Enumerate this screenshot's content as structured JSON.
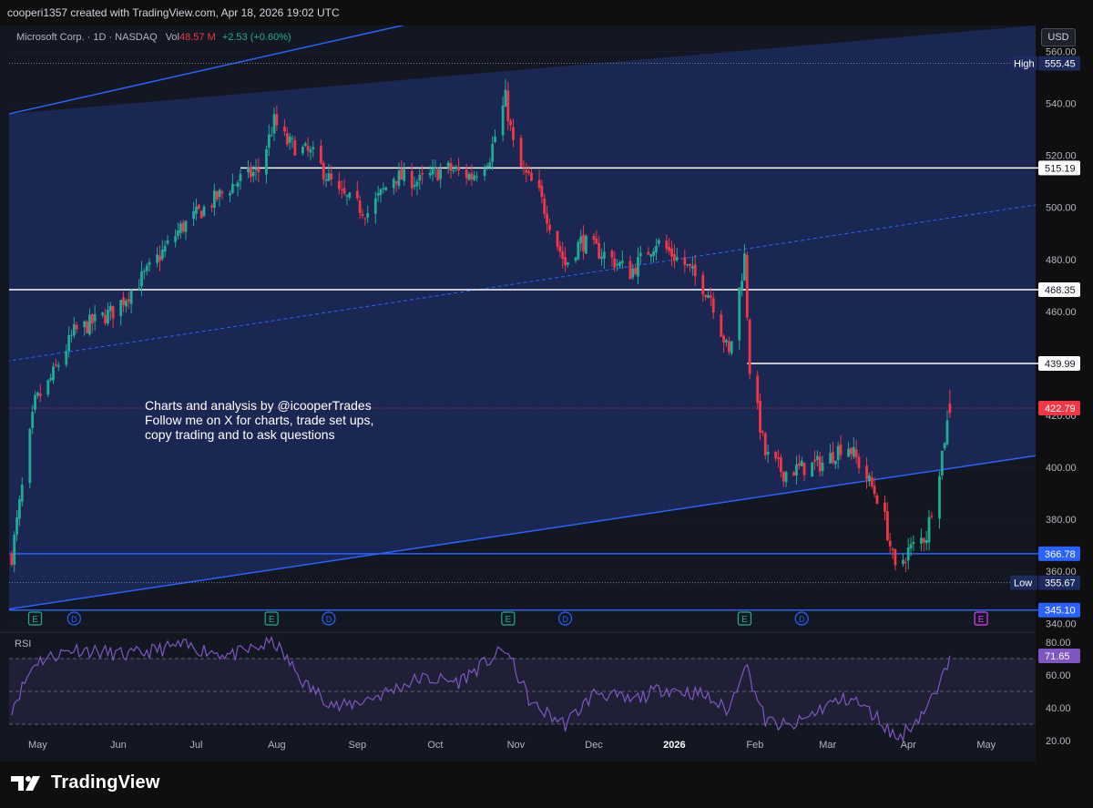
{
  "header": {
    "credit": "cooperi1357 created with TradingView.com, Apr 18, 2026 19:02 UTC"
  },
  "legend": {
    "symbol": "Microsoft Corp. · 1D · NASDAQ",
    "vol_label": "Vol",
    "vol_value": "48.57 M",
    "change": "+2.53 (+0.60%)"
  },
  "currency": "USD",
  "annotation": {
    "line1": "Charts and analysis by @icooperTrades",
    "line2": "Follow me on X for charts, trade set ups,",
    "line3": "copy trading and to ask questions"
  },
  "rsi_label": "RSI",
  "footer": {
    "brand": "TradingView"
  },
  "colors": {
    "background": "#131722",
    "channel_fill": "#1c2a5c",
    "channel_line": "#2962ff",
    "up": "#22ab94",
    "down": "#f23645",
    "rsi_line": "#7e57c2",
    "white_level": "#ffffff"
  },
  "chart_data": {
    "type": "candlestick",
    "symbol": "MSFT",
    "timeframe": "1D",
    "ylim": [
      338,
      570
    ],
    "yticks": [
      340,
      360,
      380,
      400,
      420,
      440,
      460,
      480,
      500,
      520,
      540,
      560
    ],
    "x_labels": [
      "May",
      "Jun",
      "Jul",
      "Aug",
      "Sep",
      "Oct",
      "Nov",
      "Dec",
      "2026",
      "Feb",
      "Mar",
      "Apr",
      "May"
    ],
    "price_labels": [
      {
        "label": "High",
        "value": "555.45",
        "style": "high"
      },
      {
        "label": "",
        "value": "515.19",
        "style": "white"
      },
      {
        "label": "",
        "value": "468.35",
        "style": "white"
      },
      {
        "label": "",
        "value": "439.99",
        "style": "white"
      },
      {
        "label": "",
        "value": "422.79",
        "style": "last"
      },
      {
        "label": "",
        "value": "366.78",
        "style": "blue"
      },
      {
        "label": "Low",
        "value": "355.67",
        "style": "low"
      },
      {
        "label": "",
        "value": "345.10",
        "style": "blue"
      }
    ],
    "horizontal_levels": [
      {
        "value": 515.19,
        "color": "#ffffff",
        "start": "2025-07-18"
      },
      {
        "value": 468.35,
        "color": "#ffffff",
        "start": "2025-04-20"
      },
      {
        "value": 439.99,
        "color": "#ffffff",
        "start": "2026-01-29"
      },
      {
        "value": 366.78,
        "color": "#2962ff",
        "start": "2025-04-20"
      },
      {
        "value": 345.1,
        "color": "#2962ff",
        "start": "2025-04-20"
      }
    ],
    "channel": {
      "upper": [
        [
          "2025-04-20",
          536
        ],
        [
          "2025-11-15",
          583
        ]
      ],
      "mid": [
        [
          "2025-04-20",
          441
        ],
        [
          "2026-05-20",
          501
        ]
      ],
      "lower": [
        [
          "2025-04-20",
          345.5
        ],
        [
          "2026-05-20",
          404.5
        ]
      ]
    },
    "earnings_markers": [
      "2025-04-30",
      "2025-07-30",
      "2025-10-29",
      "2026-01-28",
      "2026-04-29"
    ],
    "dividend_markers": [
      "2025-05-15",
      "2025-08-21",
      "2025-11-20",
      "2026-02-19"
    ],
    "price_path": [
      [
        "2025-04-21",
        366
      ],
      [
        "2025-04-25",
        392
      ],
      [
        "2025-04-30",
        425
      ],
      [
        "2025-05-05",
        432
      ],
      [
        "2025-05-15",
        452
      ],
      [
        "2025-05-30",
        460
      ],
      [
        "2025-06-12",
        475
      ],
      [
        "2025-06-25",
        492
      ],
      [
        "2025-07-08",
        503
      ],
      [
        "2025-07-18",
        511
      ],
      [
        "2025-07-25",
        514
      ],
      [
        "2025-07-31",
        533
      ],
      [
        "2025-08-05",
        525
      ],
      [
        "2025-08-15",
        520
      ],
      [
        "2025-08-25",
        505
      ],
      [
        "2025-09-05",
        498
      ],
      [
        "2025-09-15",
        512
      ],
      [
        "2025-09-25",
        510
      ],
      [
        "2025-10-05",
        515
      ],
      [
        "2025-10-15",
        512
      ],
      [
        "2025-10-22",
        520
      ],
      [
        "2025-10-28",
        542
      ],
      [
        "2025-11-01",
        518
      ],
      [
        "2025-11-10",
        505
      ],
      [
        "2025-11-20",
        478
      ],
      [
        "2025-11-26",
        487
      ],
      [
        "2025-12-05",
        482
      ],
      [
        "2025-12-15",
        475
      ],
      [
        "2025-12-25",
        487
      ],
      [
        "2026-01-05",
        478
      ],
      [
        "2026-01-15",
        466
      ],
      [
        "2026-01-22",
        443
      ],
      [
        "2026-01-28",
        481
      ],
      [
        "2026-01-30",
        438
      ],
      [
        "2026-02-05",
        405
      ],
      [
        "2026-02-12",
        398
      ],
      [
        "2026-02-20",
        400
      ],
      [
        "2026-02-28",
        402
      ],
      [
        "2026-03-08",
        410
      ],
      [
        "2026-03-15",
        398
      ],
      [
        "2026-03-22",
        385
      ],
      [
        "2026-03-27",
        360
      ],
      [
        "2026-04-01",
        368
      ],
      [
        "2026-04-08",
        374
      ],
      [
        "2026-04-13",
        400
      ],
      [
        "2026-04-17",
        422.79
      ]
    ],
    "rsi": {
      "ylim": [
        15,
        85
      ],
      "yticks": [
        20,
        40,
        60,
        80
      ],
      "bands": [
        30,
        50,
        70
      ],
      "current": 71.65,
      "path": [
        [
          "2025-04-21",
          40
        ],
        [
          "2025-04-30",
          68
        ],
        [
          "2025-05-15",
          76
        ],
        [
          "2025-06-05",
          72
        ],
        [
          "2025-06-25",
          78
        ],
        [
          "2025-07-15",
          72
        ],
        [
          "2025-07-31",
          80
        ],
        [
          "2025-08-12",
          54
        ],
        [
          "2025-08-25",
          40
        ],
        [
          "2025-09-10",
          48
        ],
        [
          "2025-09-25",
          58
        ],
        [
          "2025-10-10",
          56
        ],
        [
          "2025-10-28",
          76
        ],
        [
          "2025-11-07",
          42
        ],
        [
          "2025-11-20",
          30
        ],
        [
          "2025-12-02",
          50
        ],
        [
          "2025-12-15",
          44
        ],
        [
          "2025-12-28",
          52
        ],
        [
          "2026-01-12",
          48
        ],
        [
          "2026-01-22",
          38
        ],
        [
          "2026-01-28",
          68
        ],
        [
          "2026-02-05",
          32
        ],
        [
          "2026-02-15",
          28
        ],
        [
          "2026-03-01",
          42
        ],
        [
          "2026-03-10",
          46
        ],
        [
          "2026-03-20",
          34
        ],
        [
          "2026-03-28",
          21
        ],
        [
          "2026-04-06",
          36
        ],
        [
          "2026-04-13",
          52
        ],
        [
          "2026-04-17",
          71.65
        ]
      ]
    }
  }
}
